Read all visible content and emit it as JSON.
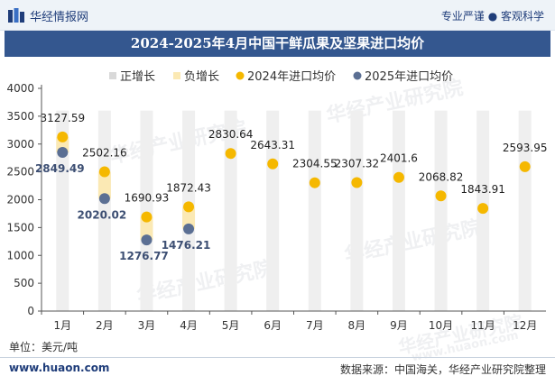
{
  "header": {
    "site_name": "华经情报网",
    "tagline": "专业严谨 ● 客观科学"
  },
  "watermark": {
    "text": "华经产业研究院",
    "url": "www.huaon.com"
  },
  "colors": {
    "positive_bar": "#d9d9d9",
    "negative_bar": "#fbe9b4",
    "series_2024": "#f5b800",
    "series_2025": "#5b6f93",
    "title_bg": "#34578f"
  },
  "chart_data": {
    "type": "line",
    "title": "2024-2025年4月中国干鲜瓜果及坚果进口均价",
    "categories": [
      "1月",
      "2月",
      "3月",
      "4月",
      "5月",
      "6月",
      "7月",
      "8月",
      "9月",
      "10月",
      "11月",
      "12月"
    ],
    "ylim": [
      0,
      4000
    ],
    "yticks": [
      0,
      500,
      1000,
      1500,
      2000,
      2500,
      3000,
      3500,
      4000
    ],
    "grid": false,
    "legend_position": "top",
    "legend": [
      "正增长",
      "负增长",
      "2024年进口均价",
      "2025年进口均价"
    ],
    "series": [
      {
        "name": "2024年进口均价",
        "values": [
          3127.59,
          2502.16,
          1690.93,
          1872.43,
          2830.64,
          2643.31,
          2304.55,
          2307.32,
          2401.6,
          2068.82,
          1843.91,
          2593.95
        ]
      },
      {
        "name": "2025年进口均价",
        "values": [
          2849.49,
          2020.02,
          1276.77,
          1476.21,
          null,
          null,
          null,
          null,
          null,
          null,
          null,
          null
        ]
      }
    ],
    "change_bars": [
      {
        "type": "negative",
        "from": 2849.49,
        "to": 3127.59
      },
      {
        "type": "negative",
        "from": 2020.02,
        "to": 2502.16
      },
      {
        "type": "negative",
        "from": 1276.77,
        "to": 1690.93
      },
      {
        "type": "negative",
        "from": 1476.21,
        "to": 1872.43
      }
    ]
  },
  "footer": {
    "unit": "单位：美元/吨",
    "site_url": "www.huaon.com",
    "source": "数据来源：中国海关，华经产业研究院整理"
  }
}
